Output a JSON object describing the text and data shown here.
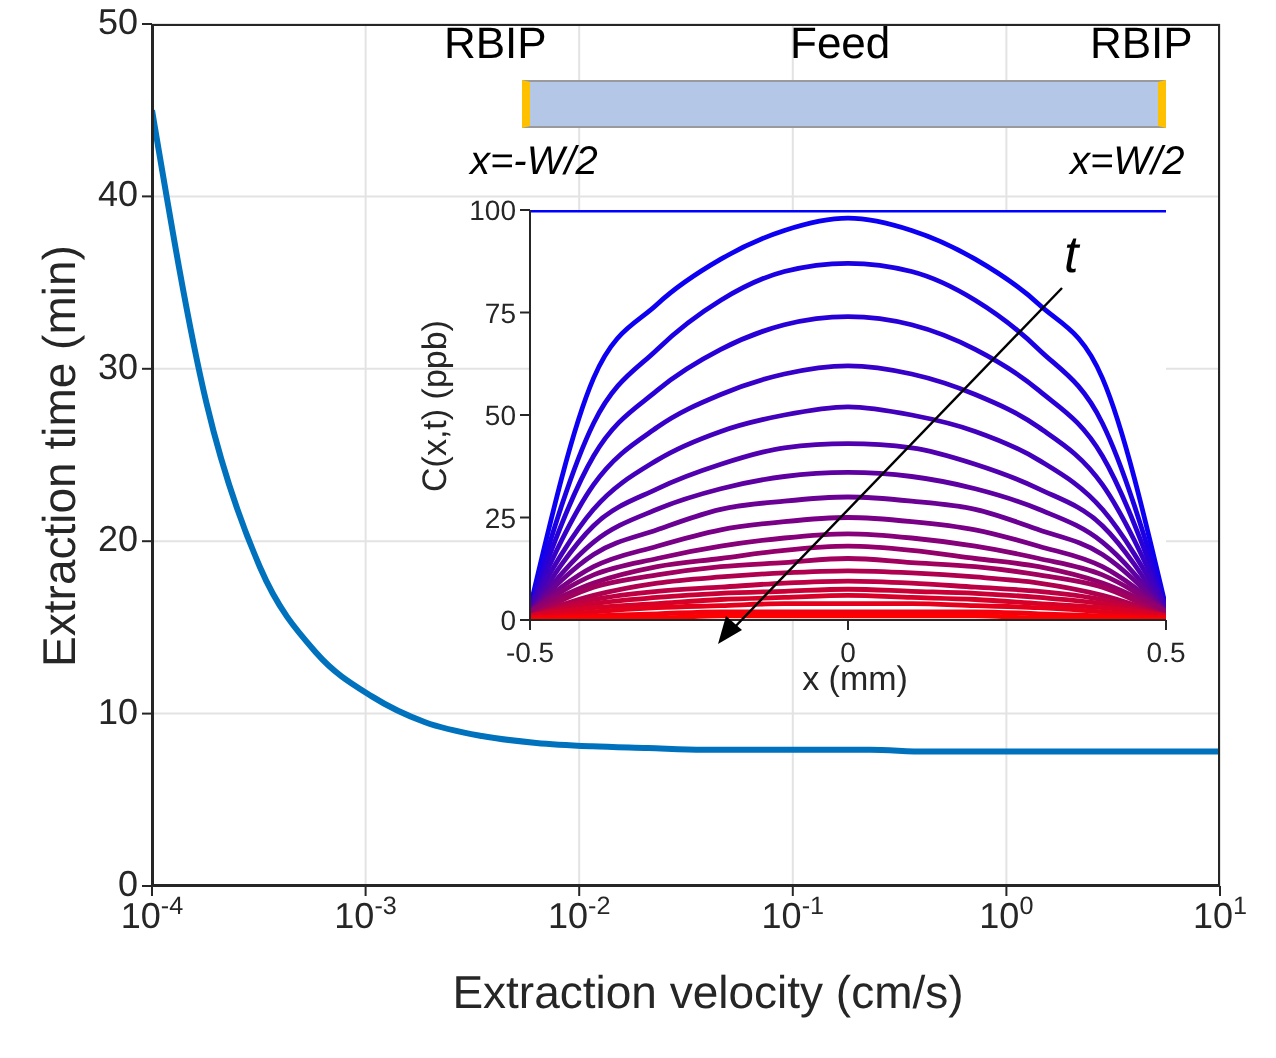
{
  "chart_data": [
    {
      "type": "line",
      "xlabel": "Extraction velocity (cm/s)",
      "ylabel": "Extraction time (min)",
      "color": "#0072bd",
      "log": "x",
      "grid": true,
      "x": [
        0.0001,
        0.00018,
        0.00032,
        0.00059,
        0.00107,
        0.0019,
        0.0035,
        0.0063,
        0.0115,
        0.021,
        0.038,
        0.07,
        0.13,
        0.23,
        0.42,
        0.77,
        1.4,
        2.5,
        4.6,
        7.6,
        10
      ],
      "values": [
        45,
        28,
        18.5,
        13.5,
        11,
        9.5,
        8.7,
        8.3,
        8.1,
        8,
        7.9,
        7.9,
        7.9,
        7.9,
        7.8,
        7.8,
        7.8,
        7.8,
        7.8,
        7.8,
        7.8
      ],
      "xlim": [
        0.0001,
        10
      ],
      "xticks": [
        {
          "value": 0.0001,
          "label": "10$^{-4}$"
        },
        {
          "value": 0.001,
          "label": "10$^{-3}$"
        },
        {
          "value": 0.01,
          "label": "10$^{-2}$"
        },
        {
          "value": 0.1,
          "label": "10$^{-1}$"
        },
        {
          "value": 1,
          "label": "10$^{0}$"
        },
        {
          "value": 10,
          "label": "10$^{1}$"
        }
      ],
      "ylim": [
        0,
        50
      ],
      "yticks": [
        0,
        10,
        20,
        30,
        40,
        50
      ]
    },
    {
      "type": "line",
      "xlabel": "x (mm)",
      "ylabel": "C(x,t) (ppb)",
      "annotations": [
        "RBIP",
        "Feed",
        "RBIP",
        "x=-W/2",
        "x=W/2",
        "t"
      ],
      "x": [
        -0.5,
        -0.4,
        -0.3,
        -0.2,
        -0.1,
        0,
        0.1,
        0.2,
        0.3,
        0.4,
        0.5
      ],
      "xlim": [
        -0.5,
        0.5
      ],
      "xticks": [
        -0.5,
        0,
        0.5
      ],
      "ylim": [
        0,
        100
      ],
      "yticks": [
        0,
        25,
        50,
        75,
        100
      ],
      "series": [
        {
          "color": "#0000ff",
          "values": [
            100,
            100,
            100,
            100,
            100,
            100,
            100,
            100,
            100,
            100,
            100
          ]
        },
        {
          "color": "#0d00f2",
          "values": [
            3,
            59,
            77,
            88,
            95,
            98,
            95,
            88,
            77,
            59,
            3
          ]
        },
        {
          "color": "#1b00e4",
          "values": [
            3,
            48,
            66,
            78,
            85,
            87,
            85,
            78,
            66,
            48,
            3
          ]
        },
        {
          "color": "#2800d7",
          "values": [
            3,
            40,
            56,
            66,
            72,
            74,
            72,
            66,
            56,
            40,
            3
          ]
        },
        {
          "color": "#3600c9",
          "values": [
            3,
            33,
            47,
            55,
            60,
            62,
            60,
            55,
            47,
            33,
            3
          ]
        },
        {
          "color": "#4300bc",
          "values": [
            3,
            27,
            39,
            46,
            50,
            52,
            50,
            46,
            39,
            27,
            3
          ]
        },
        {
          "color": "#5000af",
          "values": [
            2,
            23,
            32,
            38,
            42,
            43,
            42,
            38,
            32,
            23,
            2
          ]
        },
        {
          "color": "#5e00a1",
          "values": [
            2,
            19,
            27,
            32,
            35,
            36,
            35,
            32,
            27,
            19,
            2
          ]
        },
        {
          "color": "#6b0094",
          "values": [
            2,
            16,
            22,
            27,
            29,
            30,
            29,
            27,
            22,
            16,
            2
          ]
        },
        {
          "color": "#790086",
          "values": [
            2,
            13,
            18,
            22,
            24,
            25,
            24,
            22,
            18,
            13,
            2
          ]
        },
        {
          "color": "#860079",
          "values": [
            2,
            11,
            15,
            18,
            20,
            21,
            20,
            18,
            15,
            11,
            2
          ]
        },
        {
          "color": "#94006b",
          "values": [
            2,
            9,
            13,
            15,
            17,
            18,
            17,
            15,
            13,
            9,
            2
          ]
        },
        {
          "color": "#a1005e",
          "values": [
            1,
            8,
            11,
            13,
            14,
            15,
            14,
            13,
            11,
            8,
            1
          ]
        },
        {
          "color": "#af0050",
          "values": [
            1,
            6,
            9,
            10.5,
            11.5,
            12,
            11.5,
            10.5,
            9,
            6,
            1
          ]
        },
        {
          "color": "#bc0043",
          "values": [
            1,
            5,
            7,
            8,
            9,
            9.5,
            9,
            8,
            7,
            5,
            1
          ]
        },
        {
          "color": "#c90036",
          "values": [
            1,
            4,
            5.5,
            6.5,
            7,
            7.5,
            7,
            6.5,
            5.5,
            4,
            1
          ]
        },
        {
          "color": "#d70028",
          "values": [
            1,
            3,
            4,
            5,
            5.5,
            6,
            5.5,
            5,
            4,
            3,
            1
          ]
        },
        {
          "color": "#e4001b",
          "values": [
            0.5,
            2,
            3,
            3.5,
            4,
            4,
            4,
            3.5,
            3,
            2,
            0.5
          ]
        },
        {
          "color": "#f2000d",
          "values": [
            0.5,
            1,
            1.5,
            2,
            2,
            2,
            2,
            2,
            1.5,
            1,
            0.5
          ]
        },
        {
          "color": "#ff0000",
          "values": [
            0,
            0.5,
            0.5,
            1,
            1,
            1,
            1,
            1,
            0.5,
            0.5,
            0
          ]
        }
      ]
    }
  ]
}
